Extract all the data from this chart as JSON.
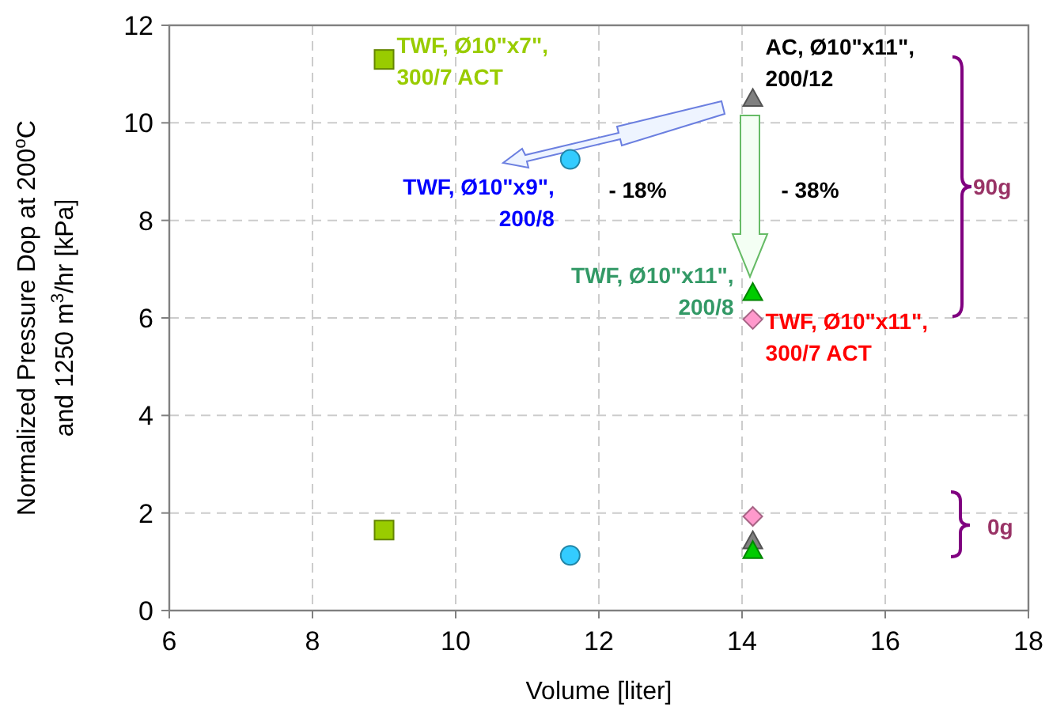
{
  "chart_data": {
    "type": "scatter",
    "xlabel": "Volume [liter]",
    "ylabel": "Normalized Pressure Dop at 200$^{o}$C and 1250 m$^{3}$/hr [kPa]",
    "xlim": [
      6,
      18
    ],
    "xticks": [
      6,
      8,
      10,
      12,
      14,
      16,
      18
    ],
    "ylim": [
      0,
      12
    ],
    "yticks": [
      0,
      2,
      4,
      6,
      8,
      10,
      12
    ],
    "grid": true,
    "series": [
      {
        "name": "TWF, Ø10\"x7\", 300/7 ACT",
        "color": "#99cc00",
        "marker": "square",
        "x": [
          9.0,
          9.0
        ],
        "values": [
          11.3,
          1.65
        ]
      },
      {
        "name": "TWF, Ø10\"x9\", 200/8",
        "color": "#33ccff",
        "marker": "circle",
        "x": [
          11.6,
          11.6
        ],
        "values": [
          9.25,
          1.13
        ]
      },
      {
        "name": "AC, Ø10\"x11\", 200/12",
        "color": "#808080",
        "marker": "triangle",
        "x": [
          14.15,
          14.15
        ],
        "values": [
          10.5,
          1.43
        ]
      },
      {
        "name": "TWF, Ø10\"x11\", 200/8",
        "color": "#00cc00",
        "marker": "triangle",
        "x": [
          14.15,
          14.15
        ],
        "values": [
          6.52,
          1.23
        ]
      },
      {
        "name": "TWF, Ø10\"x11\", 300/7 ACT",
        "color": "#ff99cc",
        "marker": "diamond",
        "x": [
          14.15,
          14.15
        ],
        "values": [
          5.97,
          1.93
        ]
      }
    ],
    "annotations": [
      "- 18%",
      "- 38%",
      "90g",
      "0g"
    ]
  }
}
